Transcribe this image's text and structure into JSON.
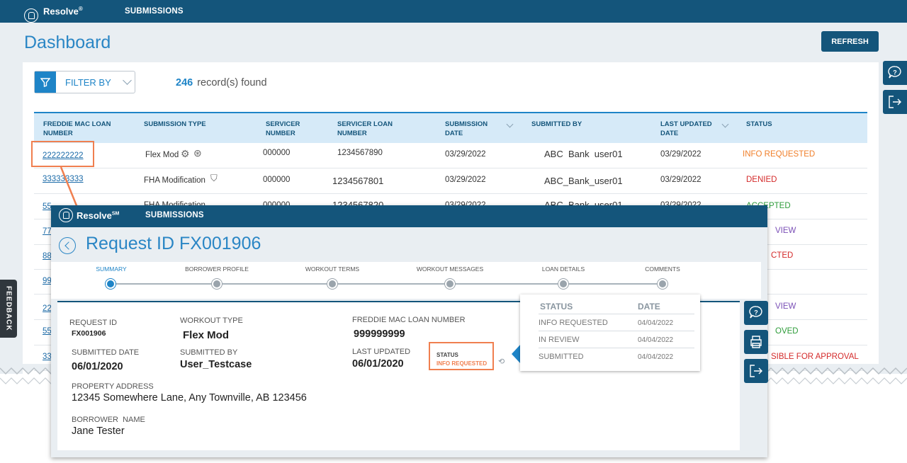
{
  "dashboard": {
    "brand": "Resolve",
    "brand_mark": "®",
    "nav": "SUBMISSIONS",
    "title": "Dashboard",
    "refresh": "REFRESH",
    "filter_label": "FILTER BY",
    "record_count": "246",
    "record_suffix": "record(s) found",
    "feedback": "FEEDBACK",
    "columns": [
      "FREDDIE MAC LOAN NUMBER",
      "SUBMISSION TYPE",
      "SERVICER NUMBER",
      "SERVICER LOAN NUMBER",
      "SUBMISSION DATE",
      "SUBMITTED BY",
      "LAST UPDATED DATE",
      "STATUS"
    ],
    "rows": [
      {
        "loan": "222222222",
        "type": "Flex Mod",
        "servicer": "000000",
        "servicer_loan": "1234567890",
        "sub_date": "03/29/2022",
        "by": "ABC  Bank  user01",
        "updated": "03/29/2022",
        "status": "INFO REQUESTED",
        "status_color": "#f07f2a"
      },
      {
        "loan": "333333333",
        "type": "FHA Modification",
        "servicer": "000000",
        "servicer_loan": "1234567801",
        "sub_date": "03/29/2022",
        "by": "ABC_Bank_user01",
        "updated": "03/29/2022",
        "status": "DENIED",
        "status_color": "#d42a2a"
      },
      {
        "loan": "55",
        "type": "FHA Modification",
        "servicer": "000000",
        "servicer_loan": "1234567820",
        "sub_date": "03/29/2022",
        "by": "ABC_Bank_user01",
        "updated": "03/29/2022",
        "status": "ACCEPTED",
        "status_color": "#2e9c3a"
      },
      {
        "loan": "77",
        "status": "VIEW",
        "status_color": "#7a4fb6"
      },
      {
        "loan": "88",
        "status": "CTED",
        "status_color": "#d42a2a"
      },
      {
        "loan": "99",
        "status": "",
        "status_color": "#333333"
      },
      {
        "loan": "22",
        "status": "VIEW",
        "status_color": "#7a4fb6"
      },
      {
        "loan": "55",
        "status": "OVED",
        "status_color": "#2e9c3a"
      },
      {
        "loan": "33",
        "status": "SIBLE FOR APPROVAL",
        "status_color": "#d42a2a"
      }
    ]
  },
  "detail": {
    "brand": "Resolve",
    "brand_mark": "SM",
    "nav": "SUBMISSIONS",
    "title": "Request ID FX001906",
    "steps": [
      "SUMMARY",
      "BORROWER PROFILE",
      "WORKOUT TERMS",
      "WORKOUT MESSAGES",
      "LOAN DETAILS",
      "COMMENTS"
    ],
    "active_step": 0,
    "fields": {
      "request_id_label": "REQUEST ID",
      "request_id": "FX001906",
      "workout_type_label": "WORKOUT TYPE",
      "workout_type": "Flex Mod",
      "loan_number_label": "FREDDIE MAC LOAN NUMBER",
      "loan_number": "999999999",
      "submitted_date_label": "SUBMITTED DATE",
      "submitted_date": "06/01/2020",
      "submitted_by_label": "SUBMITTED BY",
      "submitted_by": "User_Testcase",
      "last_updated_label": "LAST UPDATED",
      "last_updated": "06/01/2020",
      "status_label": "STATUS",
      "status": "INFO REQUESTED",
      "address_label": "PROPERTY ADDRESS",
      "address": "12345 Somewhere Lane, Any Townville, AB 123456",
      "borrower_label": "BORROWER  NAME",
      "borrower": "Jane Tester"
    },
    "history": {
      "status_header": "STATUS",
      "date_header": "DATE",
      "items": [
        {
          "status": "INFO REQUESTED",
          "date": "04/04/2022"
        },
        {
          "status": "IN REVIEW",
          "date": "04/04/2022"
        },
        {
          "status": "SUBMITTED",
          "date": "04/04/2022"
        }
      ]
    }
  },
  "colors": {
    "header": "#14557b",
    "accent": "#1e84c7",
    "highlight": "#f07f4f"
  }
}
